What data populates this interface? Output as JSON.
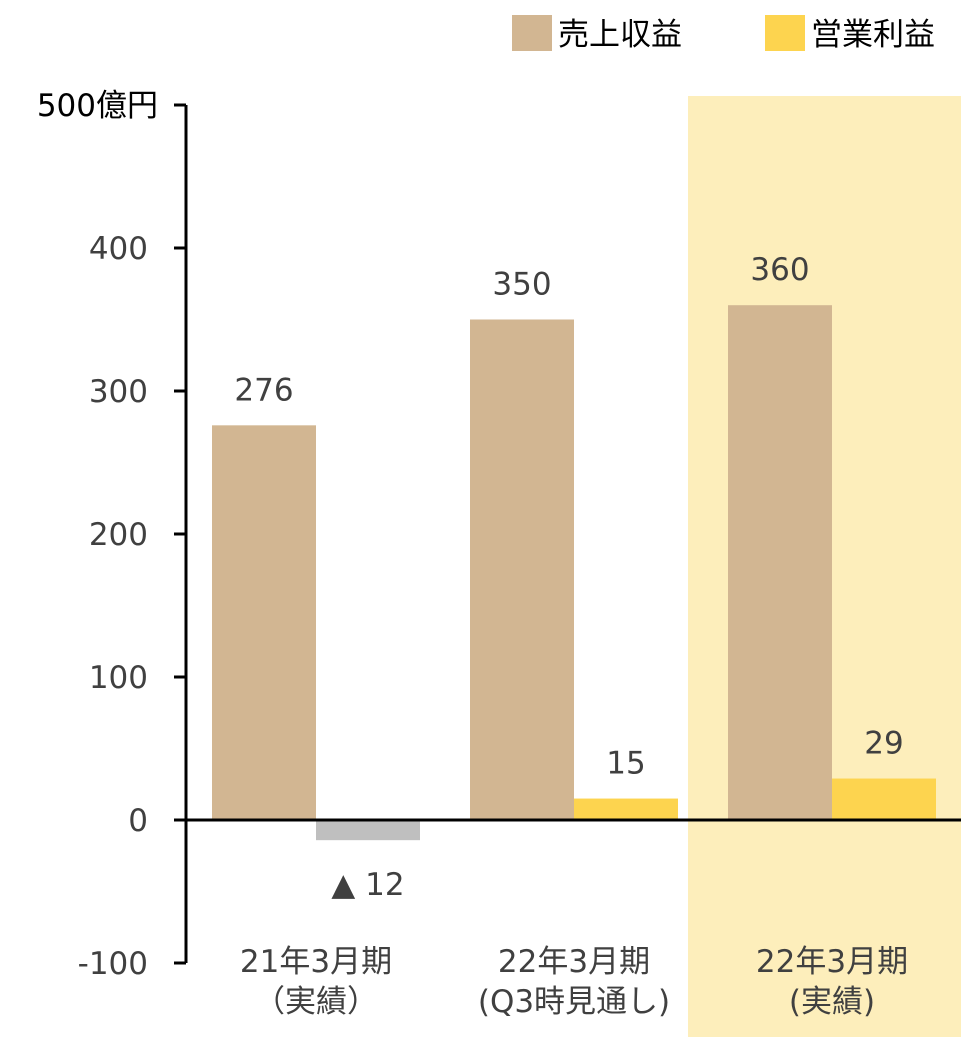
{
  "chart_data": {
    "type": "bar",
    "y_unit_label": "500億円",
    "ylim": [
      -100,
      500
    ],
    "yticks": [
      -100,
      0,
      100,
      200,
      300,
      400
    ],
    "categories": [
      {
        "line1": "21年3月期",
        "line2": "（実績）"
      },
      {
        "line1": "22年3月期",
        "line2": "(Q3時見通し)"
      },
      {
        "line1": "22年3月期",
        "line2": "(実績)"
      }
    ],
    "highlighted_category": 2,
    "series": [
      {
        "name": "売上収益",
        "values": [
          276,
          350,
          360
        ],
        "labels": [
          "276",
          "350",
          "360"
        ]
      },
      {
        "name": "営業利益",
        "values": [
          -12,
          15,
          29
        ],
        "labels": [
          "▲ 12",
          "15",
          "29"
        ]
      }
    ],
    "colors": {
      "revenue": "#d2b692",
      "profit": "#fdd44f",
      "negative": "#bfbfbf",
      "highlight_bg": "#fdeebb",
      "axis": "#000000",
      "text": "#404040"
    },
    "grid": false,
    "legend_position": "top-right"
  }
}
